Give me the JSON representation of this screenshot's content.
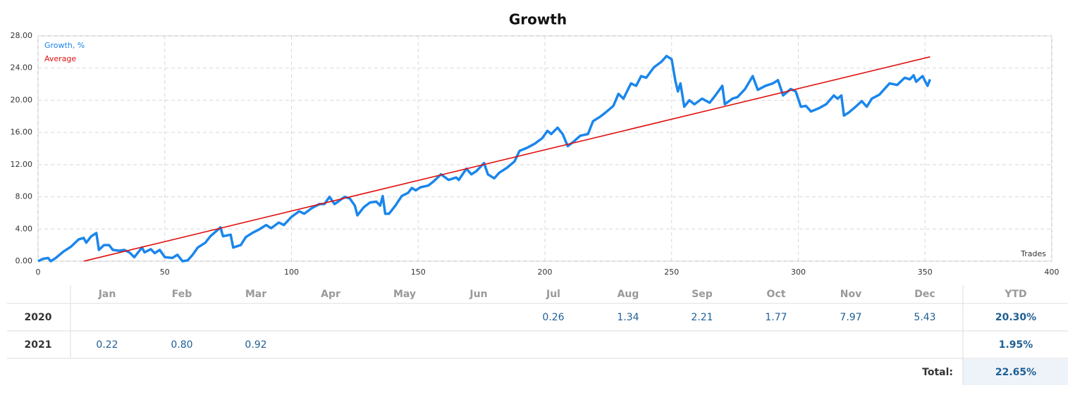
{
  "chart_data": {
    "type": "line",
    "title": "Growth",
    "xlabel": "Trades",
    "grid": true,
    "legend": "upper left",
    "xlim": [
      0,
      400
    ],
    "xticks": [
      0,
      50,
      100,
      150,
      200,
      250,
      300,
      350,
      400
    ],
    "ylim": [
      0,
      28
    ],
    "yticks": [
      {
        "value": 0,
        "label": "0.00"
      },
      {
        "value": 4,
        "label": "4.00"
      },
      {
        "value": 8,
        "label": "8.00"
      },
      {
        "value": 12,
        "label": "12.00"
      },
      {
        "value": 16,
        "label": "16.00"
      },
      {
        "value": 20,
        "label": "20.00"
      },
      {
        "value": 24,
        "label": "24.00"
      },
      {
        "value": 28,
        "label": "28.00"
      }
    ],
    "series": [
      {
        "name": "Growth, %",
        "color": "#1a86ec",
        "x": [
          0,
          2,
          4,
          5,
          7,
          10,
          13,
          16,
          18,
          19,
          21,
          23,
          24,
          26,
          28,
          29.5,
          32,
          34,
          36,
          38,
          41,
          42,
          44.5,
          46,
          48,
          50,
          53,
          55,
          57,
          59,
          61,
          63,
          66,
          68,
          72,
          73,
          76,
          77,
          80,
          82,
          85,
          87,
          90,
          92,
          95,
          97,
          100,
          103,
          105,
          108,
          111,
          113,
          115,
          117,
          121,
          123,
          125,
          126,
          128.5,
          131,
          133.5,
          135,
          136,
          137,
          138.5,
          141,
          143.5,
          146,
          147.5,
          149,
          151,
          154,
          156,
          159,
          162,
          165,
          166,
          169,
          171,
          173,
          176,
          177.5,
          180,
          182,
          185,
          188,
          190,
          193,
          196,
          199,
          201,
          202.5,
          205,
          207,
          209,
          211.5,
          214,
          217,
          219,
          222,
          224,
          227,
          229,
          231,
          234,
          236,
          238,
          240,
          243,
          246,
          248,
          250,
          251.5,
          252.5,
          253.5,
          255,
          257,
          259,
          262,
          265,
          267.5,
          270,
          271,
          274,
          276,
          279,
          282,
          284,
          287,
          290,
          292,
          294,
          297,
          299,
          301,
          303,
          305,
          308,
          311,
          314,
          315.5,
          317,
          318,
          320,
          323,
          325,
          327,
          329,
          332,
          334,
          336,
          339,
          342,
          344,
          345.5,
          346.5,
          349,
          351,
          352
        ],
        "values": [
          0,
          0.3,
          0.4,
          0,
          0.4,
          1.2,
          1.8,
          2.7,
          2.9,
          2.3,
          3.1,
          3.5,
          1.4,
          2.0,
          2.0,
          1.4,
          1.3,
          1.4,
          1.1,
          0.5,
          1.7,
          1.1,
          1.5,
          1.0,
          1.4,
          0.5,
          0.4,
          0.8,
          0,
          0.1,
          0.8,
          1.7,
          2.3,
          3.1,
          4.2,
          3.1,
          3.3,
          1.7,
          2.0,
          3.0,
          3.6,
          3.9,
          4.5,
          4.1,
          4.8,
          4.5,
          5.5,
          6.2,
          5.9,
          6.6,
          7.1,
          7.1,
          8.0,
          7.1,
          8.0,
          7.8,
          6.9,
          5.7,
          6.7,
          7.3,
          7.4,
          6.9,
          8.1,
          5.9,
          5.9,
          6.9,
          8.1,
          8.5,
          9.1,
          8.8,
          9.2,
          9.4,
          9.9,
          10.8,
          10.1,
          10.4,
          10.1,
          11.5,
          10.8,
          11.2,
          12.2,
          10.8,
          10.3,
          11.0,
          11.6,
          12.4,
          13.7,
          14.1,
          14.6,
          15.3,
          16.2,
          15.8,
          16.6,
          15.8,
          14.3,
          14.9,
          15.6,
          15.8,
          17.4,
          18.0,
          18.5,
          19.3,
          20.8,
          20.2,
          22.1,
          21.8,
          23.0,
          22.8,
          24.1,
          24.8,
          25.5,
          25.1,
          22.4,
          21.1,
          22.1,
          19.2,
          20.0,
          19.5,
          20.2,
          19.7,
          20.7,
          21.8,
          19.5,
          20.2,
          20.4,
          21.4,
          23.0,
          21.3,
          21.8,
          22.1,
          22.5,
          20.6,
          21.4,
          21.1,
          19.2,
          19.3,
          18.6,
          19.0,
          19.5,
          20.6,
          20.2,
          20.6,
          18.1,
          18.5,
          19.3,
          19.9,
          19.2,
          20.2,
          20.7,
          21.4,
          22.1,
          21.9,
          22.8,
          22.6,
          23.1,
          22.3,
          23.0,
          21.8,
          22.6
        ]
      },
      {
        "name": "Average",
        "color": "#e01010",
        "x": [
          18,
          352
        ],
        "values": [
          0,
          25.4
        ]
      }
    ]
  },
  "table": {
    "months": [
      "Jan",
      "Feb",
      "Mar",
      "Apr",
      "May",
      "Jun",
      "Jul",
      "Aug",
      "Sep",
      "Oct",
      "Nov",
      "Dec"
    ],
    "ytd_header": "YTD",
    "rows": [
      {
        "year": "2020",
        "cells": [
          null,
          null,
          null,
          null,
          null,
          null,
          "0.26",
          "1.34",
          "2.21",
          "1.77",
          "7.97",
          "5.43"
        ],
        "ytd": "20.30%"
      },
      {
        "year": "2021",
        "cells": [
          "0.22",
          "0.80",
          "0.92",
          null,
          null,
          null,
          null,
          null,
          null,
          null,
          null,
          null
        ],
        "ytd": "1.95%"
      }
    ],
    "total_label": "Total:",
    "total": "22.65%"
  }
}
